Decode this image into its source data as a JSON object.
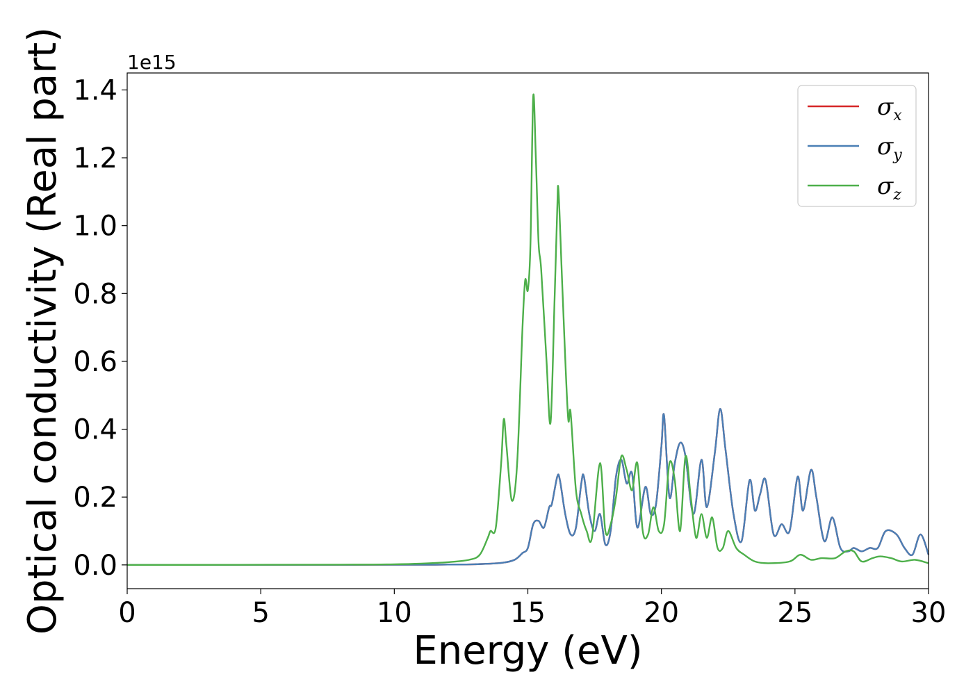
{
  "chart_data": {
    "type": "line",
    "xlabel": "Energy (eV)",
    "ylabel": "Optical conductivity (Real part)",
    "y_offset_text": "1e15",
    "y_scale_factor": 1000000000000000.0,
    "xlim": [
      0,
      30
    ],
    "ylim": [
      -0.07,
      1.45
    ],
    "x_ticks": [
      0,
      5,
      10,
      15,
      20,
      25,
      30
    ],
    "y_ticks": [
      0.0,
      0.2,
      0.4,
      0.6,
      0.8,
      1.0,
      1.2,
      1.4
    ],
    "grid": false,
    "legend_position": "top-right",
    "series": [
      {
        "name": "σx",
        "legend_base": "σ",
        "legend_sub": "x",
        "color": "#d62728",
        "points": [
          [
            0,
            0
          ],
          [
            10,
            0.0005
          ],
          [
            12,
            0.001
          ],
          [
            13,
            0.002
          ],
          [
            14,
            0.006
          ],
          [
            14.5,
            0.015
          ],
          [
            14.8,
            0.035
          ],
          [
            15,
            0.05
          ],
          [
            15.2,
            0.12
          ],
          [
            15.4,
            0.13
          ],
          [
            15.6,
            0.11
          ],
          [
            15.8,
            0.17
          ],
          [
            15.9,
            0.18
          ],
          [
            16.1,
            0.26
          ],
          [
            16.2,
            0.25
          ],
          [
            16.4,
            0.15
          ],
          [
            16.6,
            0.09
          ],
          [
            16.8,
            0.11
          ],
          [
            17.0,
            0.24
          ],
          [
            17.1,
            0.26
          ],
          [
            17.3,
            0.15
          ],
          [
            17.5,
            0.1
          ],
          [
            17.7,
            0.15
          ],
          [
            17.9,
            0.06
          ],
          [
            18.1,
            0.1
          ],
          [
            18.3,
            0.26
          ],
          [
            18.5,
            0.31
          ],
          [
            18.7,
            0.24
          ],
          [
            18.9,
            0.27
          ],
          [
            19.1,
            0.11
          ],
          [
            19.4,
            0.23
          ],
          [
            19.6,
            0.15
          ],
          [
            19.8,
            0.18
          ],
          [
            20.0,
            0.35
          ],
          [
            20.1,
            0.44
          ],
          [
            20.3,
            0.2
          ],
          [
            20.5,
            0.3
          ],
          [
            20.7,
            0.36
          ],
          [
            20.9,
            0.32
          ],
          [
            21.2,
            0.15
          ],
          [
            21.5,
            0.31
          ],
          [
            21.7,
            0.17
          ],
          [
            22.0,
            0.33
          ],
          [
            22.2,
            0.46
          ],
          [
            22.4,
            0.34
          ],
          [
            22.7,
            0.15
          ],
          [
            23.0,
            0.07
          ],
          [
            23.3,
            0.25
          ],
          [
            23.5,
            0.16
          ],
          [
            23.7,
            0.21
          ],
          [
            23.9,
            0.25
          ],
          [
            24.2,
            0.09
          ],
          [
            24.5,
            0.12
          ],
          [
            24.8,
            0.1
          ],
          [
            25.1,
            0.26
          ],
          [
            25.3,
            0.16
          ],
          [
            25.6,
            0.28
          ],
          [
            25.8,
            0.2
          ],
          [
            26.1,
            0.07
          ],
          [
            26.4,
            0.14
          ],
          [
            26.7,
            0.05
          ],
          [
            27.0,
            0.04
          ],
          [
            27.2,
            0.05
          ],
          [
            27.5,
            0.04
          ],
          [
            27.8,
            0.05
          ],
          [
            28.1,
            0.05
          ],
          [
            28.4,
            0.1
          ],
          [
            28.8,
            0.09
          ],
          [
            29.1,
            0.05
          ],
          [
            29.4,
            0.03
          ],
          [
            29.7,
            0.09
          ],
          [
            30,
            0.03
          ]
        ]
      },
      {
        "name": "σy",
        "legend_base": "σ",
        "legend_sub": "y",
        "color": "#4a7fb5",
        "points": [
          [
            0,
            0
          ],
          [
            10,
            0.0005
          ],
          [
            12,
            0.001
          ],
          [
            13,
            0.002
          ],
          [
            14,
            0.006
          ],
          [
            14.5,
            0.015
          ],
          [
            14.8,
            0.035
          ],
          [
            15,
            0.05
          ],
          [
            15.2,
            0.12
          ],
          [
            15.4,
            0.13
          ],
          [
            15.6,
            0.11
          ],
          [
            15.8,
            0.17
          ],
          [
            15.9,
            0.18
          ],
          [
            16.1,
            0.26
          ],
          [
            16.2,
            0.25
          ],
          [
            16.4,
            0.15
          ],
          [
            16.6,
            0.09
          ],
          [
            16.8,
            0.11
          ],
          [
            17.0,
            0.24
          ],
          [
            17.1,
            0.26
          ],
          [
            17.3,
            0.15
          ],
          [
            17.5,
            0.1
          ],
          [
            17.7,
            0.15
          ],
          [
            17.9,
            0.06
          ],
          [
            18.1,
            0.1
          ],
          [
            18.3,
            0.26
          ],
          [
            18.5,
            0.31
          ],
          [
            18.7,
            0.24
          ],
          [
            18.9,
            0.27
          ],
          [
            19.1,
            0.11
          ],
          [
            19.4,
            0.23
          ],
          [
            19.6,
            0.15
          ],
          [
            19.8,
            0.18
          ],
          [
            20.0,
            0.35
          ],
          [
            20.1,
            0.44
          ],
          [
            20.3,
            0.2
          ],
          [
            20.5,
            0.3
          ],
          [
            20.7,
            0.36
          ],
          [
            20.9,
            0.32
          ],
          [
            21.2,
            0.15
          ],
          [
            21.5,
            0.31
          ],
          [
            21.7,
            0.17
          ],
          [
            22.0,
            0.33
          ],
          [
            22.2,
            0.46
          ],
          [
            22.4,
            0.34
          ],
          [
            22.7,
            0.15
          ],
          [
            23.0,
            0.07
          ],
          [
            23.3,
            0.25
          ],
          [
            23.5,
            0.16
          ],
          [
            23.7,
            0.21
          ],
          [
            23.9,
            0.25
          ],
          [
            24.2,
            0.09
          ],
          [
            24.5,
            0.12
          ],
          [
            24.8,
            0.1
          ],
          [
            25.1,
            0.26
          ],
          [
            25.3,
            0.16
          ],
          [
            25.6,
            0.28
          ],
          [
            25.8,
            0.2
          ],
          [
            26.1,
            0.07
          ],
          [
            26.4,
            0.14
          ],
          [
            26.7,
            0.05
          ],
          [
            27.0,
            0.04
          ],
          [
            27.2,
            0.05
          ],
          [
            27.5,
            0.04
          ],
          [
            27.8,
            0.05
          ],
          [
            28.1,
            0.05
          ],
          [
            28.4,
            0.1
          ],
          [
            28.8,
            0.09
          ],
          [
            29.1,
            0.05
          ],
          [
            29.4,
            0.03
          ],
          [
            29.7,
            0.09
          ],
          [
            30,
            0.03
          ]
        ]
      },
      {
        "name": "σz",
        "legend_base": "σ",
        "legend_sub": "z",
        "color": "#4daf4a",
        "points": [
          [
            0,
            0
          ],
          [
            8,
            0.0008
          ],
          [
            10,
            0.002
          ],
          [
            11,
            0.004
          ],
          [
            12,
            0.008
          ],
          [
            12.8,
            0.015
          ],
          [
            13.2,
            0.03
          ],
          [
            13.5,
            0.08
          ],
          [
            13.6,
            0.1
          ],
          [
            13.8,
            0.11
          ],
          [
            14.0,
            0.3
          ],
          [
            14.1,
            0.43
          ],
          [
            14.2,
            0.35
          ],
          [
            14.4,
            0.19
          ],
          [
            14.6,
            0.3
          ],
          [
            14.8,
            0.7
          ],
          [
            14.9,
            0.84
          ],
          [
            15.0,
            0.81
          ],
          [
            15.1,
            0.95
          ],
          [
            15.2,
            1.38
          ],
          [
            15.3,
            1.2
          ],
          [
            15.4,
            0.95
          ],
          [
            15.5,
            0.87
          ],
          [
            15.7,
            0.6
          ],
          [
            15.85,
            0.42
          ],
          [
            16.0,
            0.78
          ],
          [
            16.1,
            1.05
          ],
          [
            16.15,
            1.1
          ],
          [
            16.3,
            0.8
          ],
          [
            16.5,
            0.44
          ],
          [
            16.6,
            0.45
          ],
          [
            16.8,
            0.22
          ],
          [
            17.0,
            0.15
          ],
          [
            17.2,
            0.1
          ],
          [
            17.4,
            0.08
          ],
          [
            17.7,
            0.3
          ],
          [
            17.9,
            0.1
          ],
          [
            18.1,
            0.12
          ],
          [
            18.3,
            0.2
          ],
          [
            18.5,
            0.32
          ],
          [
            18.7,
            0.28
          ],
          [
            18.9,
            0.22
          ],
          [
            19.1,
            0.3
          ],
          [
            19.3,
            0.1
          ],
          [
            19.5,
            0.09
          ],
          [
            19.7,
            0.17
          ],
          [
            19.9,
            0.1
          ],
          [
            20.1,
            0.12
          ],
          [
            20.3,
            0.3
          ],
          [
            20.5,
            0.25
          ],
          [
            20.7,
            0.1
          ],
          [
            20.9,
            0.32
          ],
          [
            21.1,
            0.2
          ],
          [
            21.3,
            0.08
          ],
          [
            21.5,
            0.15
          ],
          [
            21.7,
            0.08
          ],
          [
            21.9,
            0.14
          ],
          [
            22.1,
            0.05
          ],
          [
            22.3,
            0.05
          ],
          [
            22.5,
            0.1
          ],
          [
            22.8,
            0.05
          ],
          [
            23.1,
            0.03
          ],
          [
            23.5,
            0.01
          ],
          [
            24.0,
            0.005
          ],
          [
            24.8,
            0.01
          ],
          [
            25.2,
            0.03
          ],
          [
            25.6,
            0.015
          ],
          [
            26.0,
            0.02
          ],
          [
            26.5,
            0.02
          ],
          [
            26.9,
            0.04
          ],
          [
            27.2,
            0.04
          ],
          [
            27.5,
            0.01
          ],
          [
            27.9,
            0.02
          ],
          [
            28.2,
            0.025
          ],
          [
            28.6,
            0.02
          ],
          [
            29.0,
            0.01
          ],
          [
            29.5,
            0.015
          ],
          [
            30,
            0.005
          ]
        ]
      }
    ]
  }
}
